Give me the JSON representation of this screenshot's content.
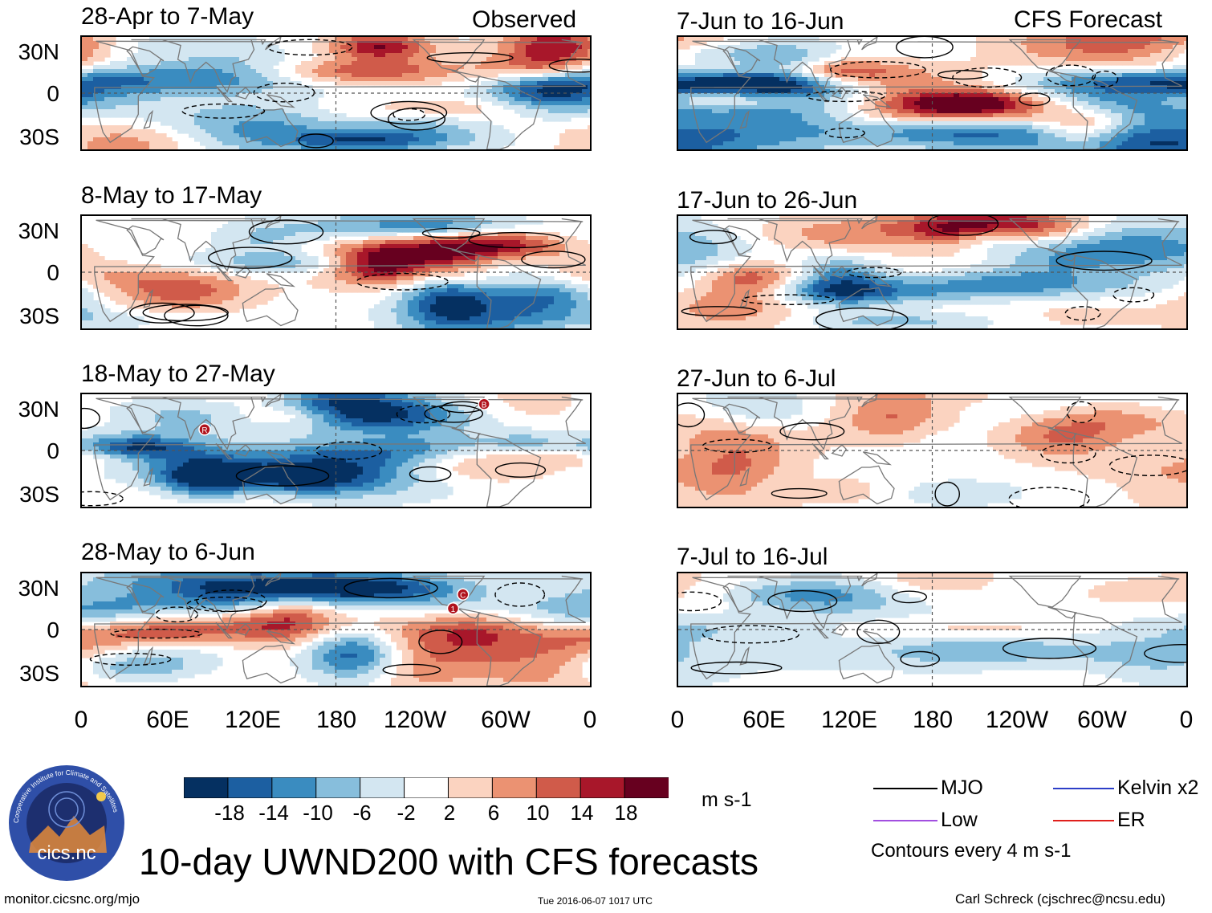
{
  "column_headings": {
    "observed": "Observed",
    "forecast": "CFS Forecast"
  },
  "observed_panels": [
    {
      "title": "28-Apr to 7-May",
      "seed": 3
    },
    {
      "title": "8-May to 17-May",
      "seed": 11
    },
    {
      "title": "18-May to 27-May",
      "seed": 19
    },
    {
      "title": "28-May to 6-Jun",
      "seed": 27
    }
  ],
  "forecast_panels": [
    {
      "title": "7-Jun to 16-Jun",
      "seed": 35,
      "amp": 1.0
    },
    {
      "title": "17-Jun to 26-Jun",
      "seed": 43,
      "amp": 0.75
    },
    {
      "title": "27-Jun to 6-Jul",
      "seed": 51,
      "amp": 0.45
    },
    {
      "title": "7-Jul to 16-Jul",
      "seed": 59,
      "amp": 0.4
    }
  ],
  "lat_labels": [
    "30N",
    "0",
    "30S"
  ],
  "lon_labels": [
    "0",
    "60E",
    "120E",
    "180",
    "120W",
    "60W",
    "0"
  ],
  "markers": [
    {
      "panel": 2,
      "label": "R",
      "lon": 87,
      "lat": 15
    },
    {
      "panel": 2,
      "label": "B",
      "lon": 285,
      "lat": 33
    },
    {
      "panel": 3,
      "label": "1",
      "lon": 263,
      "lat": 15
    },
    {
      "panel": 3,
      "label": "C",
      "lon": 270,
      "lat": 25
    }
  ],
  "colorbar": {
    "unit": "m s-1",
    "tick_labels": [
      "-18",
      "-14",
      "-10",
      "-6",
      "-2",
      "2",
      "6",
      "10",
      "14",
      "18"
    ],
    "colors": [
      "#053061",
      "#1c5fa1",
      "#3a8cc0",
      "#87bedc",
      "#d3e6f1",
      "#ffffff",
      "#fbd3c0",
      "#eb9272",
      "#d05b4a",
      "#a8172a",
      "#67001f"
    ]
  },
  "legend": {
    "items": [
      {
        "label": "MJO",
        "color": "#000000"
      },
      {
        "label": "Kelvin x2",
        "color": "#2d3fc8"
      },
      {
        "label": "Low",
        "color": "#a24fe0"
      },
      {
        "label": "ER",
        "color": "#e0201c"
      }
    ],
    "contour_note": "Contours every 4 m s-1"
  },
  "logo_text": "cics.nc",
  "logo_ring_text": "Cooperative Institute for Climate and Satellites",
  "main_title": "10-day UWND200 with CFS forecasts",
  "footer": {
    "url": "monitor.cicsnc.org/mjo",
    "timestamp": "Tue 2016-06-07 1017 UTC",
    "author": "Carl Schreck (cjschrec@ncsu.edu)"
  }
}
